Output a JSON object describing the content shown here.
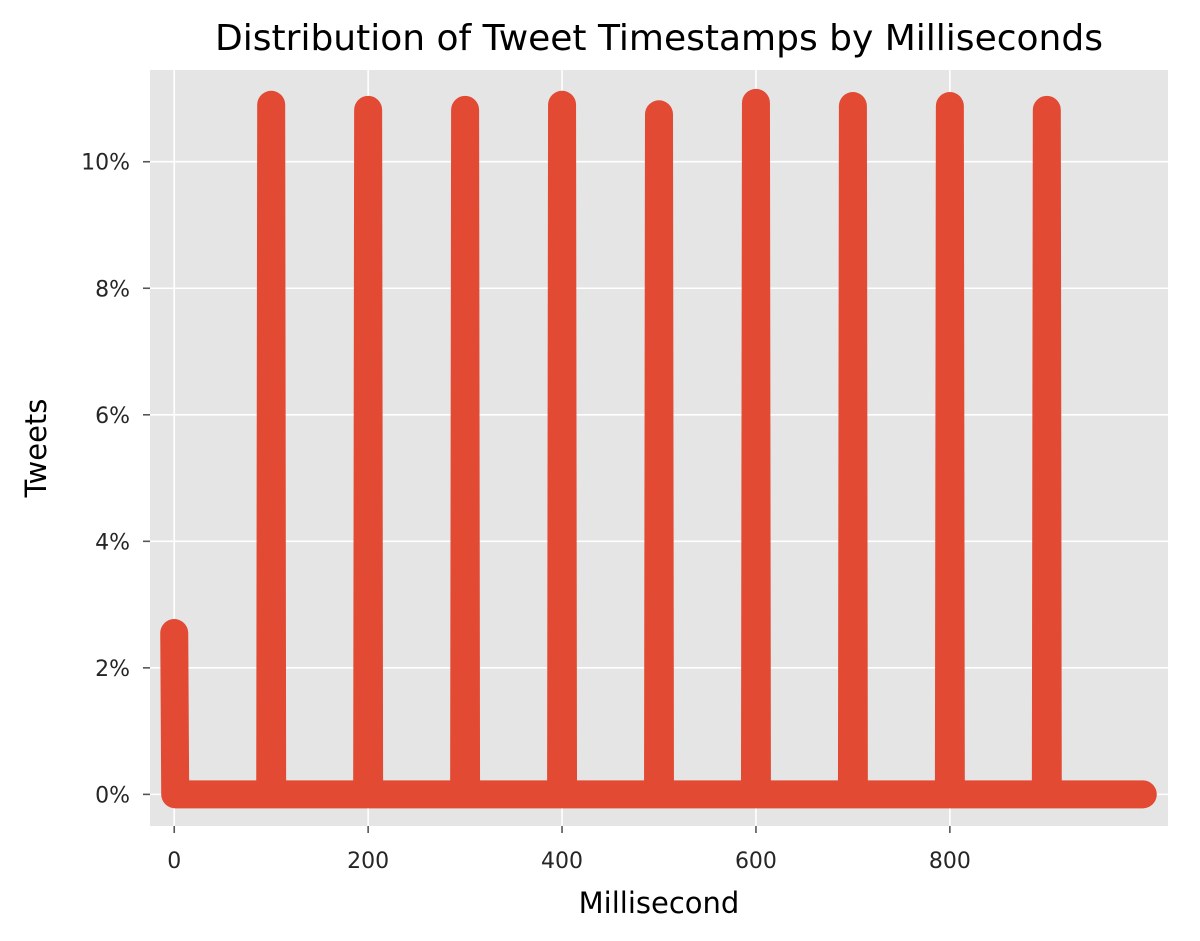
{
  "chart_data": {
    "type": "line",
    "title": "Distribution of Tweet Timestamps by Milliseconds",
    "xlabel": "Millisecond",
    "ylabel": "Tweets",
    "xlim": [
      -25,
      1025
    ],
    "ylim": [
      -0.005,
      0.1145
    ],
    "x_ticks": [
      0,
      200,
      400,
      600,
      800
    ],
    "x_tick_labels": [
      "0",
      "200",
      "400",
      "600",
      "800"
    ],
    "y_ticks": [
      0,
      0.02,
      0.04,
      0.06,
      0.08,
      0.1
    ],
    "y_tick_labels": [
      "0%",
      "2%",
      "4%",
      "6%",
      "8%",
      "10%"
    ],
    "grid": true,
    "style": "ggplot",
    "series": [
      {
        "color": "#E24A33",
        "note_points": "value is share of tweets at that millisecond; all other milliseconds are ~0",
        "x": [
          0,
          1,
          99,
          100,
          101,
          199,
          200,
          201,
          299,
          300,
          301,
          399,
          400,
          401,
          499,
          500,
          501,
          599,
          600,
          601,
          699,
          700,
          701,
          799,
          800,
          801,
          899,
          900,
          901,
          999
        ],
        "y": [
          0.0255,
          0,
          0,
          0.109,
          0,
          0,
          0.1082,
          0,
          0,
          0.1082,
          0,
          0,
          0.109,
          0,
          0,
          0.1075,
          0,
          0,
          0.1093,
          0,
          0,
          0.1088,
          0,
          0,
          0.1088,
          0,
          0,
          0.1082,
          0,
          0
        ]
      }
    ]
  }
}
